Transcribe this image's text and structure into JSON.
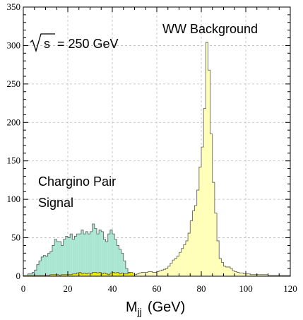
{
  "chart_data": {
    "type": "bar",
    "xlabel_main": "M",
    "xlabel_sub": "jj",
    "xlabel_unit": "(GeV)",
    "xlim": [
      0,
      120
    ],
    "ylim": [
      0,
      350
    ],
    "xticks": [
      0,
      20,
      40,
      60,
      80,
      100,
      120
    ],
    "yticks": [
      0,
      50,
      100,
      150,
      200,
      250,
      300,
      350
    ],
    "grid": true,
    "bin_width": 1,
    "annotations": {
      "energy_prefix": "s",
      "energy_text": "= 250 GeV",
      "background_label": "WW Background",
      "signal_label_line1": "Chargino Pair",
      "signal_label_line2": "Signal"
    },
    "colors": {
      "signal": "#a8e6d2",
      "background": "#ffffb8",
      "background_low": "#f0f000",
      "outline": "#555555",
      "grid": "#bbbbbb"
    },
    "series": [
      {
        "name": "Chargino Pair Signal",
        "x_start": 0,
        "values": [
          1,
          1,
          3,
          3,
          5,
          8,
          15,
          20,
          25,
          27,
          26,
          30,
          32,
          40,
          48,
          45,
          45,
          40,
          48,
          52,
          50,
          55,
          48,
          52,
          55,
          55,
          60,
          55,
          58,
          55,
          58,
          68,
          62,
          55,
          60,
          58,
          48,
          45,
          55,
          60,
          55,
          48,
          40,
          35,
          30,
          20,
          10,
          5,
          2,
          1
        ]
      },
      {
        "name": "WW Background",
        "x_start": 50,
        "values": [
          2,
          3,
          4,
          5,
          5,
          5,
          6,
          6,
          5,
          5,
          6,
          7,
          8,
          9,
          10,
          13,
          17,
          21,
          23,
          26,
          31,
          36,
          41,
          46,
          56,
          72,
          85,
          92,
          112,
          142,
          168,
          218,
          304,
          268,
          185,
          122,
          82,
          46,
          23,
          18,
          13,
          12,
          12,
          10,
          7,
          6,
          5,
          4,
          4,
          3,
          3,
          3,
          2,
          2,
          2,
          2,
          2,
          2,
          2,
          2,
          1,
          1,
          1,
          1,
          1,
          1,
          1,
          1,
          1,
          1
        ]
      },
      {
        "name": "background-low-region",
        "x_start": 0,
        "values": [
          1,
          1,
          1,
          1,
          1,
          1,
          1,
          1,
          1,
          1,
          1,
          1,
          2,
          2,
          2,
          2,
          1,
          2,
          2,
          2,
          2,
          2,
          3,
          3,
          4,
          5,
          3,
          4,
          3,
          4,
          3,
          5,
          5,
          4,
          5,
          3,
          4,
          3,
          2,
          4,
          5,
          4,
          5,
          3,
          4,
          3,
          3,
          4,
          5,
          4
        ]
      }
    ]
  }
}
